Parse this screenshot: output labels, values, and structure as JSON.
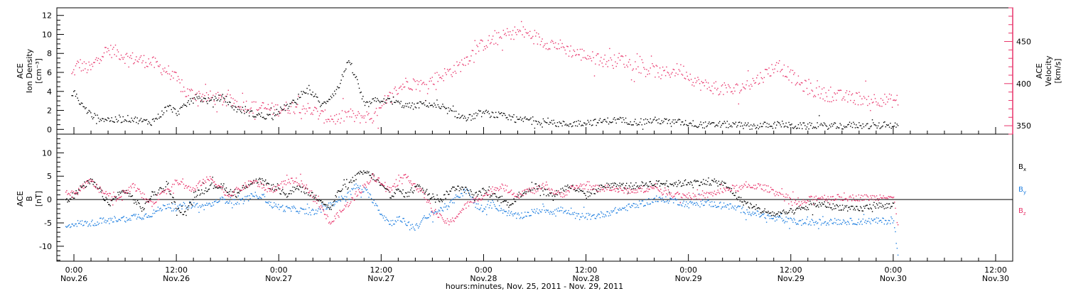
{
  "chart_data": [
    {
      "type": "scatter",
      "panel": "top",
      "ylabel_left": [
        "ACE",
        "Ion Density",
        "[cm⁻³]"
      ],
      "ylabel_right": [
        "ACE",
        "Velocity",
        "[km/s]"
      ],
      "ylim_left": [
        -0.5,
        12.8
      ],
      "ylim_right": [
        340,
        490
      ],
      "yticks_left": [
        "0",
        "2",
        "4",
        "6",
        "8",
        "10",
        "12"
      ],
      "yticks_right": [
        "350",
        "400",
        "450"
      ],
      "series": [
        {
          "name": "Ion Density",
          "color": "#000000",
          "axis": "left",
          "x": [
            -0.3,
            0.0,
            0.5,
            1,
            1.5,
            2,
            3,
            4,
            5,
            6,
            7,
            8,
            9,
            10,
            11,
            12,
            13,
            14,
            15,
            16,
            17,
            18,
            19,
            20,
            21,
            22,
            23,
            24,
            25,
            26,
            27,
            28,
            29,
            30,
            31,
            32,
            33,
            34,
            35,
            36,
            37,
            38,
            39,
            40,
            41,
            42,
            43,
            44,
            45,
            46,
            47,
            48,
            49,
            50,
            51,
            52,
            53,
            54,
            55,
            56,
            57,
            58,
            59,
            60,
            61,
            62,
            63,
            64,
            65,
            66,
            67,
            68,
            69,
            70,
            71,
            72,
            73,
            74,
            75,
            76,
            77,
            78,
            79,
            80,
            81,
            82,
            83,
            84,
            85,
            86,
            87,
            88,
            89,
            90,
            91,
            92,
            93,
            94,
            95,
            96,
            96.5
          ],
          "y": [
            3.5,
            4.2,
            3.0,
            2.5,
            2.0,
            1.5,
            1.2,
            1.1,
            1.0,
            1.2,
            1.1,
            0.9,
            0.8,
            1.5,
            2.5,
            1.8,
            2.5,
            3.5,
            3.2,
            3.0,
            3.4,
            2.8,
            2.2,
            2.0,
            1.6,
            1.5,
            1.4,
            2.0,
            2.5,
            3.0,
            4.2,
            3.8,
            2.5,
            3.5,
            4.5,
            7.2,
            5.5,
            2.5,
            3.0,
            3.2,
            3.0,
            2.8,
            2.5,
            2.5,
            2.8,
            2.6,
            2.2,
            2.0,
            1.5,
            1.2,
            1.5,
            1.8,
            1.6,
            1.5,
            1.2,
            1.0,
            1.1,
            1.0,
            0.8,
            0.7,
            0.6,
            0.6,
            0.7,
            0.8,
            0.8,
            0.9,
            1.0,
            1.0,
            0.9,
            0.8,
            0.9,
            1.0,
            0.9,
            0.8,
            0.8,
            0.7,
            0.6,
            0.5,
            0.5,
            0.6,
            0.5,
            0.5,
            0.4,
            0.4,
            0.5,
            0.5,
            0.6,
            0.4,
            0.4,
            0.4,
            0.5,
            0.4,
            0.4,
            0.4,
            0.5,
            0.5,
            0.4,
            0.4,
            0.5,
            0.5,
            0.4
          ]
        },
        {
          "name": "Velocity",
          "color": "#e8336a",
          "axis": "right",
          "x": [
            -0.3,
            0.5,
            1,
            2,
            3,
            4,
            5,
            6,
            7,
            8,
            9,
            10,
            11,
            12,
            13,
            14,
            15,
            16,
            17,
            18,
            19,
            20,
            21,
            22,
            23,
            24,
            25,
            26,
            27,
            28,
            29,
            30,
            31,
            32,
            33,
            34,
            35,
            36,
            37,
            38,
            39,
            40,
            41,
            42,
            43,
            44,
            45,
            46,
            47,
            48,
            49,
            50,
            51,
            52,
            53,
            54,
            55,
            56,
            57,
            58,
            59,
            60,
            61,
            62,
            63,
            64,
            65,
            66,
            67,
            68,
            69,
            70,
            71,
            72,
            73,
            74,
            75,
            76,
            77,
            78,
            79,
            80,
            81,
            82,
            83,
            84,
            85,
            86,
            87,
            88,
            89,
            90,
            91,
            92,
            93,
            94,
            95,
            96,
            96.5
          ],
          "y": [
            410,
            425,
            420,
            418,
            435,
            440,
            438,
            432,
            430,
            428,
            426,
            420,
            415,
            405,
            390,
            388,
            386,
            384,
            382,
            380,
            378,
            375,
            372,
            372,
            370,
            370,
            372,
            375,
            372,
            368,
            362,
            360,
            358,
            365,
            360,
            362,
            360,
            370,
            385,
            395,
            402,
            400,
            398,
            405,
            410,
            415,
            420,
            430,
            440,
            448,
            452,
            455,
            460,
            462,
            460,
            455,
            450,
            448,
            445,
            440,
            436,
            434,
            430,
            428,
            426,
            430,
            425,
            422,
            418,
            416,
            412,
            415,
            418,
            410,
            402,
            398,
            396,
            394,
            392,
            395,
            400,
            405,
            412,
            420,
            418,
            410,
            400,
            395,
            390,
            388,
            386,
            385,
            384,
            383,
            382,
            382,
            381,
            380,
            380
          ]
        }
      ]
    },
    {
      "type": "scatter",
      "panel": "bottom",
      "ylabel_left": [
        "ACE",
        "B",
        "[nT]"
      ],
      "ylim": [
        -13.2,
        14
      ],
      "yticks_left": [
        "-10",
        "-5",
        "0",
        "5",
        "10"
      ],
      "zero_line": true,
      "series": [
        {
          "name": "Bx",
          "color": "#000000",
          "x": [
            -1,
            0,
            1,
            2,
            3,
            4,
            5,
            6,
            7,
            8,
            9,
            10,
            11,
            12,
            13,
            14,
            15,
            16,
            17,
            18,
            19,
            20,
            21,
            22,
            23,
            24,
            25,
            26,
            27,
            28,
            29,
            30,
            31,
            32,
            33,
            34,
            35,
            36,
            37,
            38,
            39,
            40,
            41,
            42,
            43,
            44,
            45,
            46,
            47,
            48,
            49,
            50,
            51,
            52,
            53,
            54,
            55,
            56,
            57,
            58,
            59,
            60,
            61,
            62,
            63,
            64,
            65,
            66,
            67,
            68,
            69,
            70,
            71,
            72,
            73,
            74,
            75,
            76,
            77,
            78,
            79,
            80,
            81,
            82,
            83,
            84,
            85,
            86,
            87,
            88,
            89,
            90,
            91,
            92,
            93,
            94,
            95,
            96
          ],
          "y": [
            0,
            1,
            3,
            4,
            2,
            -1,
            1,
            2,
            0,
            -2,
            1,
            2,
            3,
            -2,
            -3,
            1,
            2,
            3,
            3,
            2,
            1,
            3,
            4,
            4,
            3,
            2,
            1,
            3,
            2,
            1,
            0,
            -2,
            2,
            3,
            5,
            6,
            5,
            3,
            1,
            2,
            1,
            3,
            2,
            1,
            0,
            2,
            3,
            2,
            1,
            2,
            1,
            0,
            -1,
            1,
            2,
            3,
            2,
            1,
            2,
            3,
            2,
            1,
            2,
            3,
            3,
            3,
            3,
            3,
            3.5,
            3.5,
            3.5,
            3.5,
            3.5,
            3.8,
            3.8,
            3.8,
            3.8,
            3.5,
            2,
            0,
            -1,
            -2,
            -2.5,
            -3,
            -3,
            -2.5,
            -2,
            -1.5,
            -1,
            -1,
            -1.5,
            -1.5,
            -2,
            -2,
            -1.5,
            -1,
            -1.5,
            -1
          ]
        },
        {
          "name": "By",
          "color": "#1f7fe0",
          "x": [
            -1,
            0,
            1,
            2,
            3,
            4,
            5,
            6,
            7,
            8,
            9,
            10,
            11,
            12,
            13,
            14,
            15,
            16,
            17,
            18,
            19,
            20,
            21,
            22,
            23,
            24,
            25,
            26,
            27,
            28,
            29,
            30,
            31,
            32,
            33,
            34,
            35,
            36,
            37,
            38,
            39,
            40,
            41,
            42,
            43,
            44,
            45,
            46,
            47,
            48,
            49,
            50,
            51,
            52,
            53,
            54,
            55,
            56,
            57,
            58,
            59,
            60,
            61,
            62,
            63,
            64,
            65,
            66,
            67,
            68,
            69,
            70,
            71,
            72,
            73,
            74,
            75,
            76,
            77,
            78,
            79,
            80,
            81,
            82,
            83,
            84,
            85,
            86,
            87,
            88,
            89,
            90,
            91,
            92,
            93,
            94,
            95,
            96,
            96.5
          ],
          "y": [
            -6,
            -5,
            -5,
            -5,
            -4.5,
            -4.5,
            -4,
            -4,
            -3.5,
            -3.5,
            -3,
            -2,
            -1,
            -2,
            -1,
            -1,
            -1.5,
            -1,
            0,
            0,
            -0.5,
            0,
            1,
            1,
            -1,
            -1.5,
            -2,
            -2,
            -2.5,
            -2.5,
            -2,
            -1,
            0,
            1,
            3,
            2,
            0,
            -3,
            -5,
            -4,
            -5,
            -6,
            -4,
            -3,
            -2,
            -1,
            1,
            2,
            -1,
            -2,
            -1,
            -2,
            -3,
            -3.5,
            -3,
            -2.5,
            -2,
            -2.5,
            -2,
            -3,
            -3.5,
            -3.5,
            -3.5,
            -3,
            -2.5,
            -2,
            -1.5,
            -1,
            -0.5,
            0,
            0,
            0,
            -0.5,
            -1,
            -0.5,
            -0.5,
            -1,
            -1,
            -1.5,
            -2,
            -2.5,
            -3,
            -3.5,
            -4,
            -4.2,
            -4.5,
            -4.8,
            -4.8,
            -4.8,
            -4.7,
            -4.6,
            -4.6,
            -4.6,
            -4.6,
            -4.5,
            -4.5,
            -4.5,
            -4.5,
            -11.5
          ]
        },
        {
          "name": "Bz",
          "color": "#e8336a",
          "x": [
            -1,
            0,
            1,
            2,
            3,
            4,
            5,
            6,
            7,
            8,
            9,
            10,
            11,
            12,
            13,
            14,
            15,
            16,
            17,
            18,
            19,
            20,
            21,
            22,
            23,
            24,
            25,
            26,
            27,
            28,
            29,
            30,
            31,
            32,
            33,
            34,
            35,
            36,
            37,
            38,
            39,
            40,
            41,
            42,
            43,
            44,
            45,
            46,
            47,
            48,
            49,
            50,
            51,
            52,
            53,
            54,
            55,
            56,
            57,
            58,
            59,
            60,
            61,
            62,
            63,
            64,
            65,
            66,
            67,
            68,
            69,
            70,
            71,
            72,
            73,
            74,
            75,
            76,
            77,
            78,
            79,
            80,
            81,
            82,
            83,
            84,
            85,
            86,
            87,
            88,
            89,
            90,
            91,
            92,
            93,
            94,
            95,
            96,
            96.5
          ],
          "y": [
            2,
            1,
            3,
            4,
            2,
            1,
            0,
            2,
            3,
            1,
            -1,
            1,
            2,
            4,
            3,
            2,
            4,
            4.5,
            3,
            1,
            2,
            3,
            4,
            3,
            2,
            3,
            4,
            4,
            3,
            1,
            -2,
            -5,
            -3,
            -1,
            1,
            3,
            5,
            4,
            2,
            4,
            5,
            3,
            1,
            -2,
            -4,
            -5,
            -3,
            -1,
            0,
            1,
            2,
            3,
            2,
            1,
            2,
            2,
            3,
            2,
            1,
            2,
            3,
            3,
            2.5,
            2.5,
            2.5,
            2,
            2,
            2,
            2.5,
            2.5,
            2,
            1.5,
            1,
            1,
            0.5,
            1,
            1.5,
            2,
            2.5,
            2.5,
            3,
            3,
            2.5,
            2,
            1,
            0,
            -1,
            0,
            0.5,
            0.5,
            0.5,
            0.5,
            0.5,
            0.5,
            0.5,
            0.5,
            1,
            0.5,
            -6
          ]
        }
      ],
      "legend": [
        {
          "label": "B",
          "sub": "x",
          "color": "#000000"
        },
        {
          "label": "B",
          "sub": "y",
          "color": "#1f7fe0"
        },
        {
          "label": "B",
          "sub": "z",
          "color": "#e8336a"
        }
      ]
    }
  ],
  "x_axis": {
    "xlim_hours": [
      -2,
      110
    ],
    "tick_hours": [
      0,
      12,
      24,
      36,
      48,
      60,
      72,
      84,
      96,
      108
    ],
    "tick_labels_time": [
      "0:00",
      "12:00",
      "0:00",
      "12:00",
      "0:00",
      "12:00",
      "0:00",
      "12:00",
      "0:00",
      "12:00"
    ],
    "tick_labels_date": [
      "Nov.26",
      "Nov.26",
      "Nov.27",
      "Nov.27",
      "Nov.28",
      "Nov.28",
      "Nov.29",
      "Nov.29",
      "Nov.30",
      "Nov.30"
    ],
    "xlabel": "hours:minutes, Nov. 25, 2011 - Nov. 29, 2011"
  }
}
